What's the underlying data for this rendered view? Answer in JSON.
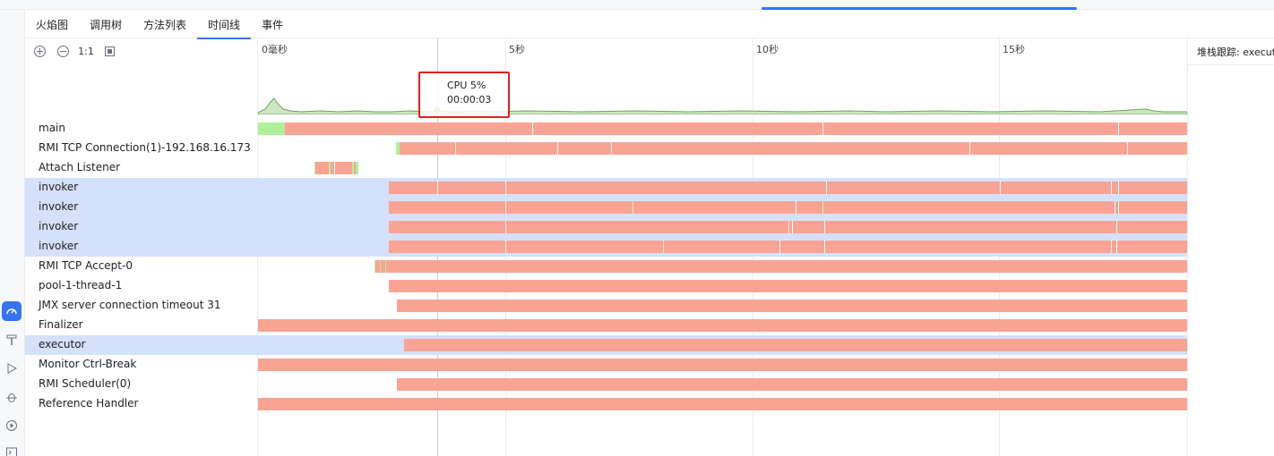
{
  "tabs": [
    {
      "label": "火焰图"
    },
    {
      "label": "调用树"
    },
    {
      "label": "方法列表"
    },
    {
      "label": "时间线",
      "active": true
    },
    {
      "label": "事件"
    }
  ],
  "toolbar": {
    "zoom_in_icon": "zoom-in-icon",
    "zoom_out_icon": "zoom-out-icon",
    "actual_size_label": "1:1",
    "fit_icon": "fit-icon"
  },
  "timeline": {
    "ticks": [
      "0毫秒",
      "5秒",
      "10秒",
      "15秒"
    ],
    "tick_seconds": [
      0,
      5,
      10,
      15
    ],
    "visible_seconds": 18.8
  },
  "tooltip": {
    "cpu": "CPU 5%",
    "time": "00:00:03"
  },
  "threads": [
    {
      "name": "main"
    },
    {
      "name": "RMI TCP Connection(1)-192.168.16.173"
    },
    {
      "name": "Attach Listener"
    },
    {
      "name": "invoker",
      "selected": true
    },
    {
      "name": "invoker",
      "selected": true
    },
    {
      "name": "invoker",
      "selected": true
    },
    {
      "name": "invoker",
      "selected": true
    },
    {
      "name": "RMI TCP Accept-0"
    },
    {
      "name": "pool-1-thread-1"
    },
    {
      "name": "JMX server connection timeout 31"
    },
    {
      "name": "Finalizer"
    },
    {
      "name": "executor",
      "selected": true
    },
    {
      "name": "Monitor Ctrl-Break"
    },
    {
      "name": "RMI Scheduler(0)"
    },
    {
      "name": "Reference Handler"
    }
  ],
  "right_panel": {
    "title": "堆栈跟踪: executor"
  },
  "colors": {
    "running": "#b1f09a",
    "waiting": "#f9a394",
    "selection": "#d5e1fb",
    "accent": "#3574f0",
    "highlight_box": "#e0201f"
  },
  "activity_icons": [
    "profiler-icon",
    "build-icon",
    "run-icon",
    "debug-icon",
    "services-icon",
    "terminal-icon"
  ]
}
